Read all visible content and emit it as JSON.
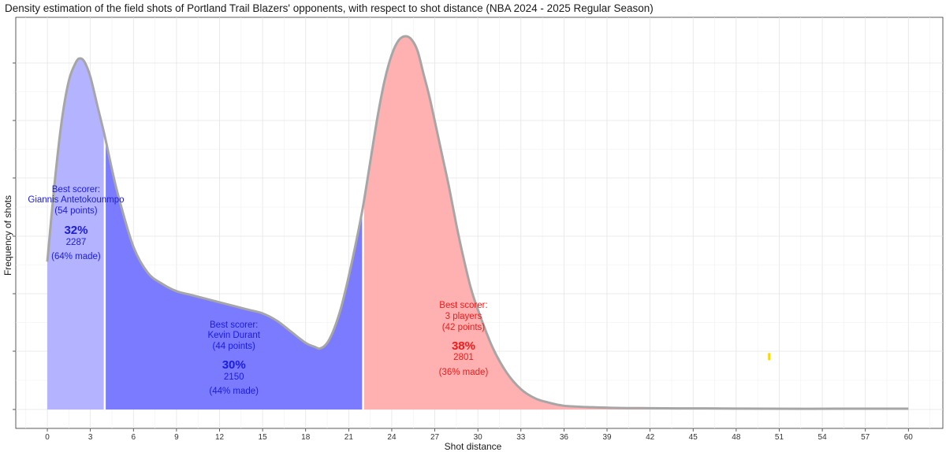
{
  "chart_data": {
    "type": "area",
    "title": "Density estimation of the field shots of Portland Trail Blazers' opponents, with respect to shot distance (NBA 2024 - 2025 Regular Season)",
    "xlabel": "Shot distance",
    "ylabel": "Frequency of shots",
    "xlim": [
      -2.2,
      62.4
    ],
    "x_ticks": [
      0,
      3,
      6,
      9,
      12,
      15,
      18,
      21,
      24,
      27,
      30,
      33,
      36,
      39,
      42,
      45,
      48,
      51,
      54,
      57,
      60
    ],
    "y_tick_labels_visible": false,
    "grid": true,
    "colors": {
      "zone_paint": "#b3b3ff",
      "zone_mid": "#7b7bff",
      "zone_three": "#ffb0b0",
      "curve": "#a6a6a6",
      "divider": "#ffffff",
      "blue_text": "#1c1cdd",
      "red_text": "#ee1c1c",
      "marker": "#ffd700"
    },
    "density_curve": {
      "x": [
        0,
        0.5,
        1,
        1.5,
        2,
        2.3,
        2.6,
        3,
        3.5,
        4,
        4.5,
        5,
        6,
        7,
        8,
        9,
        10,
        11,
        12,
        13,
        14,
        15,
        16,
        17,
        18,
        18.6,
        19,
        19.5,
        20,
        20.5,
        21,
        21.5,
        22,
        22.5,
        23,
        23.5,
        24,
        24.5,
        25,
        25.4,
        25.8,
        26.2,
        26.6,
        27,
        27.5,
        28,
        28.5,
        29,
        29.5,
        30,
        31,
        32,
        33,
        34,
        35,
        36,
        38,
        40,
        42,
        44,
        46,
        48,
        50,
        55,
        60
      ],
      "y": [
        0.4,
        0.61,
        0.78,
        0.89,
        0.94,
        0.95,
        0.94,
        0.9,
        0.82,
        0.74,
        0.65,
        0.57,
        0.44,
        0.37,
        0.34,
        0.32,
        0.31,
        0.3,
        0.29,
        0.28,
        0.27,
        0.26,
        0.24,
        0.21,
        0.18,
        0.17,
        0.165,
        0.18,
        0.22,
        0.28,
        0.36,
        0.45,
        0.55,
        0.67,
        0.79,
        0.89,
        0.96,
        1.0,
        1.01,
        1.0,
        0.97,
        0.91,
        0.85,
        0.78,
        0.69,
        0.6,
        0.5,
        0.41,
        0.33,
        0.27,
        0.17,
        0.1,
        0.055,
        0.03,
        0.018,
        0.01,
        0.006,
        0.004,
        0.0035,
        0.003,
        0.003,
        0.0025,
        0.002,
        0.002,
        0.002
      ]
    },
    "zones": [
      {
        "from": 0,
        "to": 4,
        "color_key": "zone_paint",
        "label_x": 2,
        "label_color_key": "blue_text",
        "label_lines": [
          "Best scorer:",
          "Giannis Antetokounmpo",
          "(54 points)"
        ],
        "pct": "32%",
        "count": "2287",
        "made": "(64% made)"
      },
      {
        "from": 4,
        "to": 22,
        "color_key": "zone_mid",
        "label_x": 13,
        "label_color_key": "blue_text",
        "label_lines": [
          "Best scorer:",
          "Kevin Durant",
          "(44 points)"
        ],
        "pct": "30%",
        "count": "2150",
        "made": "(44% made)"
      },
      {
        "from": 22,
        "to": 60,
        "color_key": "zone_three",
        "label_x": 29,
        "label_color_key": "red_text",
        "label_lines": [
          "Best scorer:",
          "3 players",
          "(42 points)"
        ],
        "pct": "38%",
        "count": "2801",
        "made": "(36% made)"
      }
    ],
    "marker": {
      "x": 50.3,
      "y": 0.143
    }
  }
}
